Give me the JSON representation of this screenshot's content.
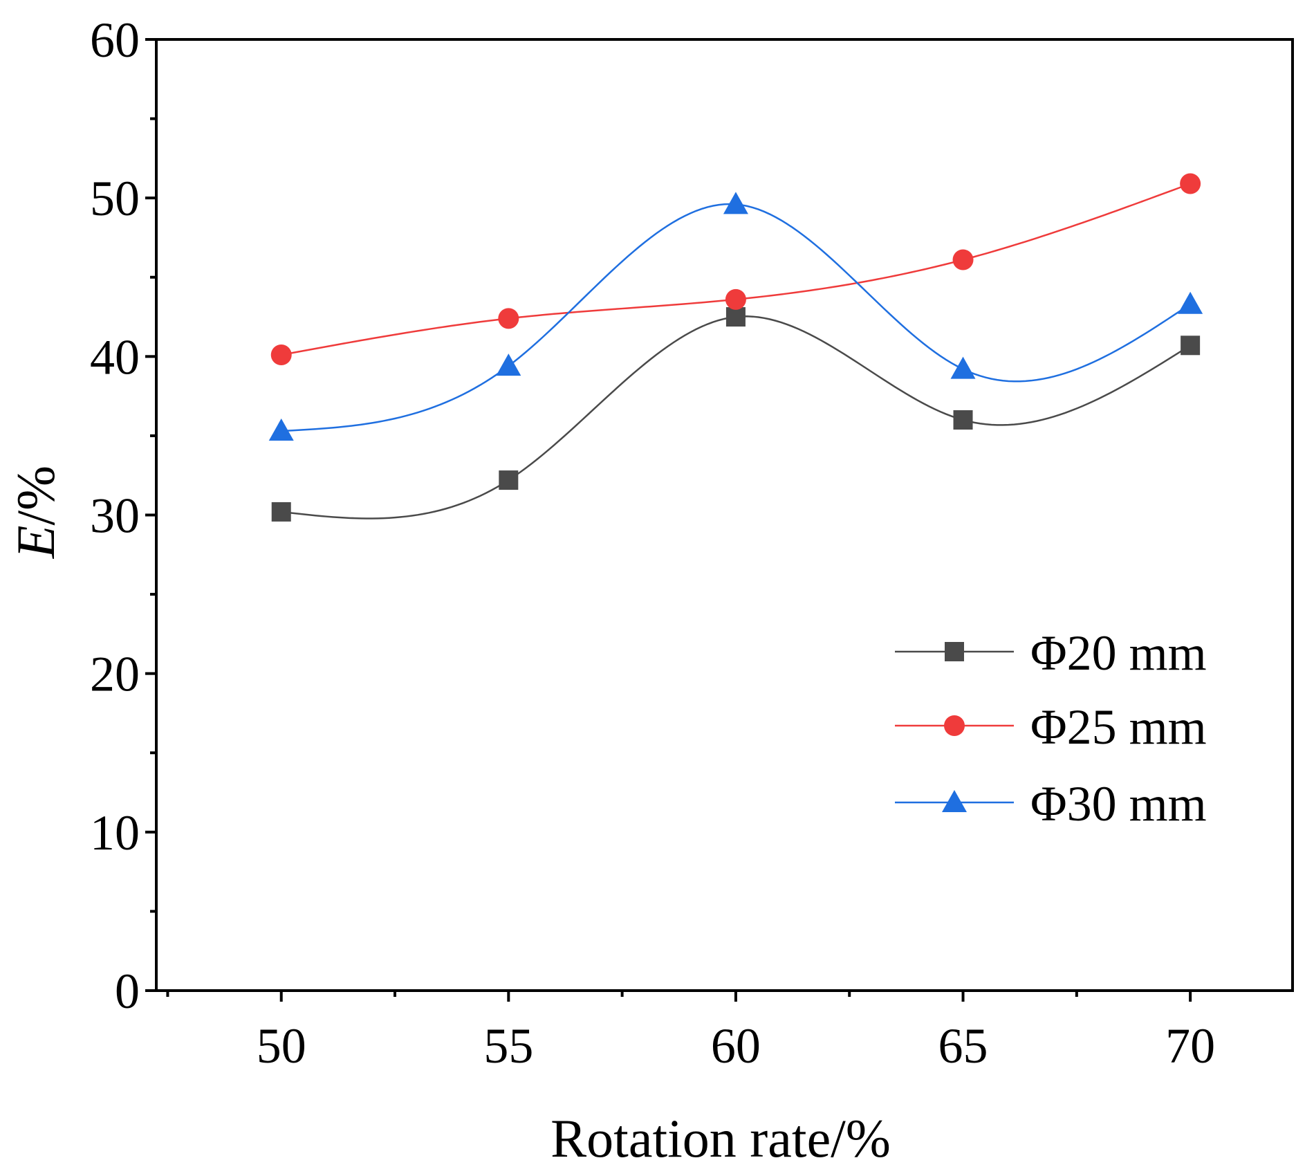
{
  "chart_data": {
    "type": "line",
    "title": "",
    "xlabel": "Rotation rate/%",
    "ylabel_italic": "E",
    "ylabel_rest": "/%",
    "xlim": [
      47.25,
      72.25
    ],
    "ylim": [
      0,
      60
    ],
    "x_ticks": [
      50,
      55,
      60,
      65,
      70
    ],
    "x_tick_labels": [
      "50",
      "55",
      "60",
      "65",
      "70"
    ],
    "x_minor_ticks": [
      47.5,
      52.5,
      57.5,
      62.5,
      67.5
    ],
    "y_ticks": [
      0,
      10,
      20,
      30,
      40,
      50,
      60
    ],
    "y_tick_labels": [
      "0",
      "10",
      "20",
      "30",
      "40",
      "50",
      "60"
    ],
    "y_minor_ticks": [
      5,
      15,
      25,
      35,
      45,
      55
    ],
    "grid": false,
    "legend_position": "center-right",
    "x": [
      50,
      55,
      60,
      65,
      70
    ],
    "series": [
      {
        "name": "Φ20 mm",
        "marker": "square",
        "color": "#4a4a4a",
        "values": [
          30.2,
          32.2,
          42.5,
          36.0,
          40.7
        ]
      },
      {
        "name": "Φ25 mm",
        "marker": "circle",
        "color": "#ef3b3b",
        "values": [
          40.1,
          42.4,
          43.6,
          46.1,
          50.9
        ]
      },
      {
        "name": "Φ30 mm",
        "marker": "triangle",
        "color": "#1f6fe0",
        "values": [
          35.3,
          39.4,
          49.6,
          39.2,
          43.3
        ]
      }
    ]
  }
}
